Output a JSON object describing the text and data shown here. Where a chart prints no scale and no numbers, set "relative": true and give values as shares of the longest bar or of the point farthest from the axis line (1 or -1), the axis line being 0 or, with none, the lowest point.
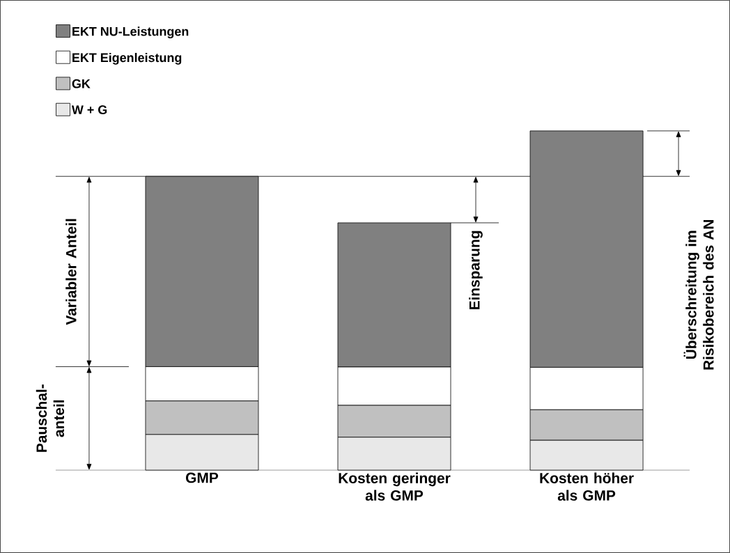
{
  "chart_data": {
    "type": "bar",
    "stacked": true,
    "relative": true,
    "legend": "top left",
    "categories": [
      "GMP",
      "Kosten geringer als GMP",
      "Kosten höher als GMP"
    ],
    "series": [
      {
        "name": "W + G",
        "color": "#e8e8e8",
        "values": [
          0.105,
          0.097,
          0.088
        ]
      },
      {
        "name": "GK",
        "color": "#c0c0c0",
        "values": [
          0.099,
          0.094,
          0.09
        ]
      },
      {
        "name": "EKT Eigenleistung",
        "color": "#ffffff",
        "values": [
          0.101,
          0.113,
          0.125
        ]
      },
      {
        "name": "EKT NU-Leistungen",
        "color": "#808080",
        "values": [
          0.561,
          0.425,
          0.697
        ]
      }
    ],
    "ref_lines": [
      {
        "axis": "y",
        "value": 0.866
      },
      {
        "axis": "y",
        "value": 0.305
      }
    ],
    "annotations": [
      "Variabler Anteil",
      "Pauschal-anteil",
      "Einsparung",
      "Überschreitung im Risikobereich des AN"
    ]
  }
}
